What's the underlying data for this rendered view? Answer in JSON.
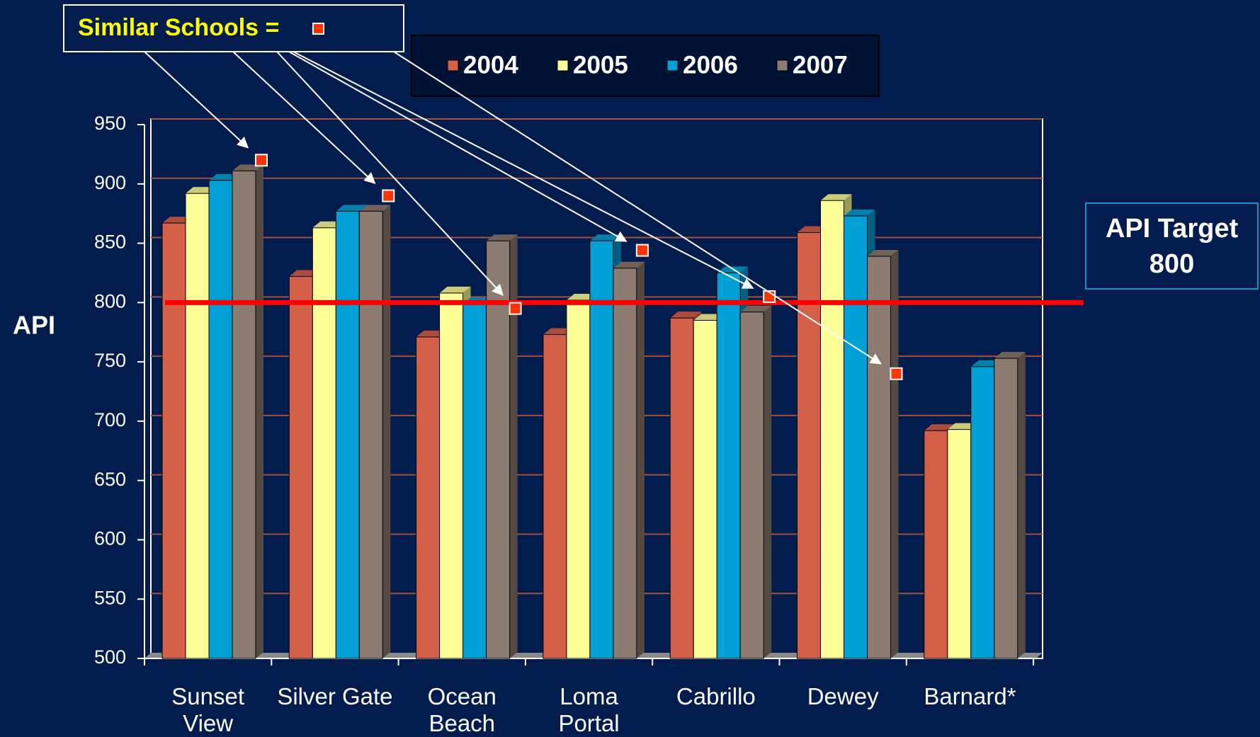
{
  "chart_data": {
    "type": "bar",
    "categories": [
      "Sunset View",
      "Silver Gate",
      "Ocean Beach",
      "Loma Portal",
      "Cabrillo",
      "Dewey",
      "Barnard*"
    ],
    "series": [
      {
        "name": "2004",
        "color": "#d4604a",
        "values": [
          867,
          822,
          771,
          773,
          787,
          859,
          692
        ]
      },
      {
        "name": "2005",
        "color": "#ffff99",
        "values": [
          892,
          863,
          808,
          802,
          785,
          886,
          693
        ]
      },
      {
        "name": "2006",
        "color": "#00a0d6",
        "values": [
          903,
          877,
          799,
          852,
          825,
          873,
          746
        ]
      },
      {
        "name": "2007",
        "color": "#8c7b70",
        "values": [
          911,
          877,
          852,
          829,
          792,
          839,
          753
        ]
      }
    ],
    "similar_schools": {
      "label": "Similar Schools =",
      "color": "#ff3300",
      "values": [
        920,
        890,
        795,
        844,
        805,
        740,
        null
      ]
    },
    "target": 800,
    "target_label": "API Target 800",
    "target_color": "#ff0000",
    "ylabel": "API",
    "ylim": [
      500,
      950
    ],
    "yticks": [
      500,
      550,
      600,
      650,
      700,
      750,
      800,
      850,
      900,
      950
    ],
    "grid": true
  }
}
